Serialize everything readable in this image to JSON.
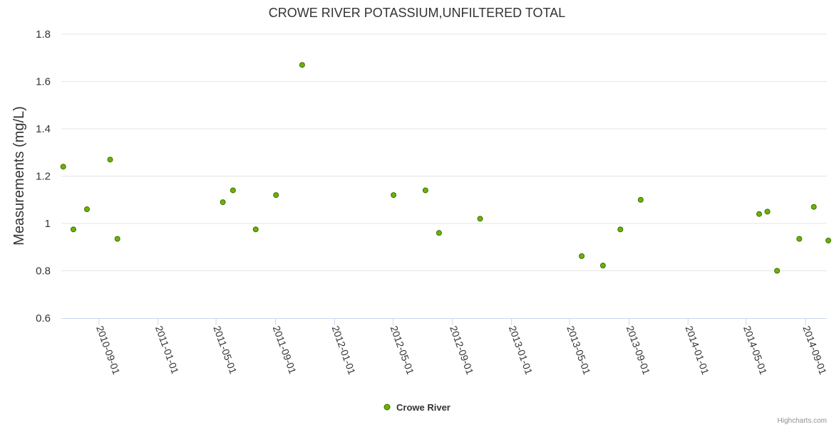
{
  "chart_data": {
    "type": "scatter",
    "title": "CROWE RIVER POTASSIUM,UNFILTERED TOTAL",
    "xlabel": "",
    "ylabel": "Measurements (mg/L)",
    "ylim": [
      0.6,
      1.8
    ],
    "yticks": [
      0.6,
      0.8,
      1,
      1.2,
      1.4,
      1.6,
      1.8
    ],
    "xlim": [
      "2010-06-15",
      "2014-10-15"
    ],
    "xticks": [
      "2010-09-01",
      "2011-01-01",
      "2011-05-01",
      "2011-09-01",
      "2012-01-01",
      "2012-05-01",
      "2012-09-01",
      "2013-01-01",
      "2013-05-01",
      "2013-09-01",
      "2014-01-01",
      "2014-05-01",
      "2014-09-01"
    ],
    "legend_position": "bottom-center",
    "grid": true,
    "series": [
      {
        "name": "Crowe River",
        "color": "#6bb300",
        "points": [
          {
            "x": "2010-06-19",
            "y": 1.24
          },
          {
            "x": "2010-07-10",
            "y": 0.975
          },
          {
            "x": "2010-08-07",
            "y": 1.06
          },
          {
            "x": "2010-09-24",
            "y": 1.27
          },
          {
            "x": "2010-10-09",
            "y": 0.935
          },
          {
            "x": "2011-05-15",
            "y": 1.09
          },
          {
            "x": "2011-06-05",
            "y": 1.14
          },
          {
            "x": "2011-07-22",
            "y": 0.975
          },
          {
            "x": "2011-09-02",
            "y": 1.12
          },
          {
            "x": "2011-10-26",
            "y": 1.67
          },
          {
            "x": "2012-05-02",
            "y": 1.12
          },
          {
            "x": "2012-07-07",
            "y": 1.14
          },
          {
            "x": "2012-08-04",
            "y": 0.96
          },
          {
            "x": "2012-10-28",
            "y": 1.02
          },
          {
            "x": "2013-05-26",
            "y": 0.862
          },
          {
            "x": "2013-07-09",
            "y": 0.822
          },
          {
            "x": "2013-08-14",
            "y": 0.975
          },
          {
            "x": "2013-09-25",
            "y": 1.1
          },
          {
            "x": "2014-05-28",
            "y": 1.04
          },
          {
            "x": "2014-06-14",
            "y": 1.05
          },
          {
            "x": "2014-07-04",
            "y": 0.8
          },
          {
            "x": "2014-08-19",
            "y": 0.935
          },
          {
            "x": "2014-09-18",
            "y": 1.07
          },
          {
            "x": "2014-10-18",
            "y": 0.928
          }
        ]
      }
    ]
  },
  "legend": {
    "label": "Crowe River",
    "color": "#6bb300"
  },
  "credits": "Highcharts.com"
}
